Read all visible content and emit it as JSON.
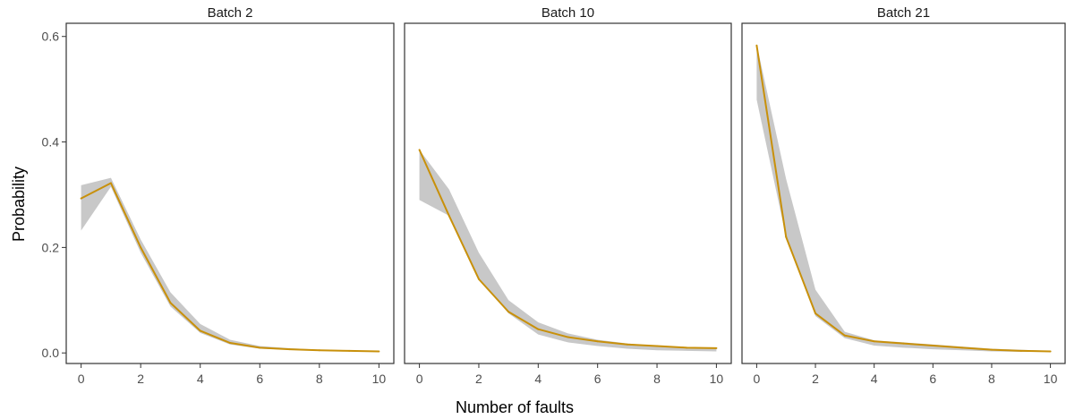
{
  "chart_data": {
    "type": "line",
    "xlabel": "Number of faults",
    "ylabel": "Probability",
    "xlim": [
      -0.5,
      10.5
    ],
    "ylim": [
      -0.02,
      0.625
    ],
    "x_ticks": [
      "0",
      "2",
      "4",
      "6",
      "8",
      "10"
    ],
    "y_ticks": [
      "0.0",
      "0.2",
      "0.4",
      "0.6"
    ],
    "grid": false,
    "colors": {
      "line": "#c8900a",
      "band": "#c8c8c8",
      "frame": "#333333"
    },
    "panels": [
      {
        "strip": "Batch 2",
        "x": [
          0,
          1,
          2,
          3,
          4,
          5,
          6,
          7,
          8,
          9,
          10
        ],
        "y": [
          0.293,
          0.322,
          0.2,
          0.095,
          0.042,
          0.019,
          0.01,
          0.007,
          0.005,
          0.004,
          0.003
        ],
        "band_low": [
          0.232,
          0.315,
          0.19,
          0.088,
          0.038,
          0.016,
          0.008,
          0.006,
          0.004,
          0.003,
          0.002
        ],
        "band_high": [
          0.318,
          0.332,
          0.215,
          0.115,
          0.055,
          0.025,
          0.013,
          0.009,
          0.006,
          0.005,
          0.004
        ]
      },
      {
        "strip": "Batch 10",
        "x": [
          0,
          1,
          2,
          3,
          4,
          5,
          6,
          7,
          8,
          9,
          10
        ],
        "y": [
          0.385,
          0.26,
          0.14,
          0.078,
          0.045,
          0.03,
          0.022,
          0.016,
          0.013,
          0.01,
          0.009
        ],
        "band_low": [
          0.29,
          0.26,
          0.14,
          0.075,
          0.035,
          0.02,
          0.013,
          0.008,
          0.005,
          0.004,
          0.003
        ],
        "band_high": [
          0.385,
          0.31,
          0.19,
          0.1,
          0.058,
          0.037,
          0.025,
          0.018,
          0.013,
          0.011,
          0.01
        ]
      },
      {
        "strip": "Batch 21",
        "x": [
          0,
          1,
          2,
          3,
          4,
          5,
          6,
          7,
          8,
          9,
          10
        ],
        "y": [
          0.583,
          0.22,
          0.075,
          0.033,
          0.022,
          0.018,
          0.014,
          0.01,
          0.006,
          0.004,
          0.003
        ],
        "band_low": [
          0.48,
          0.22,
          0.07,
          0.028,
          0.014,
          0.01,
          0.007,
          0.005,
          0.003,
          0.002,
          0.002
        ],
        "band_high": [
          0.585,
          0.33,
          0.12,
          0.04,
          0.024,
          0.02,
          0.016,
          0.012,
          0.008,
          0.006,
          0.004
        ]
      }
    ]
  }
}
